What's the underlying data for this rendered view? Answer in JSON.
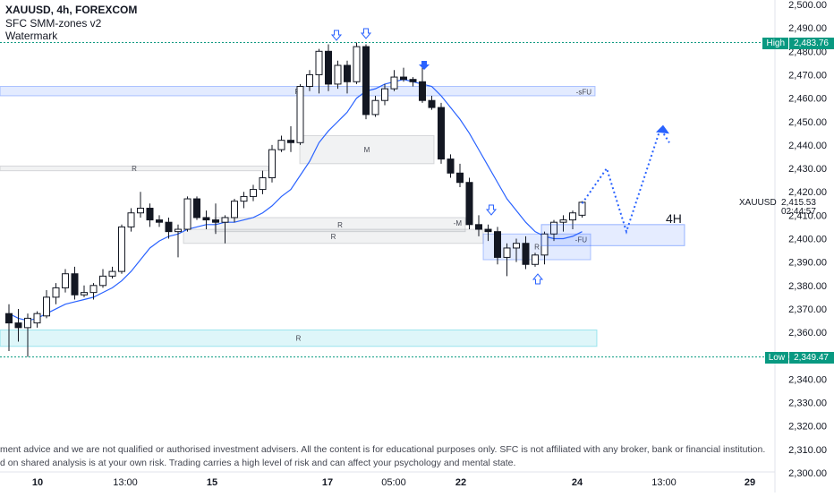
{
  "header": {
    "title": "XAUUSD, 4h, FOREXCOM",
    "indicator": "SFC SMM-zones v2",
    "watermark": "Watermark"
  },
  "timeframe_label": "4H",
  "symbol_label": "XAUUSD",
  "current_price": "2,415.53",
  "countdown": "02:44:57",
  "high_badge": {
    "label": "High",
    "value": "2,483.76"
  },
  "low_badge": {
    "label": "Low",
    "value": "2,349.47"
  },
  "disclaimer": [
    "ment advice and we are not qualified or authorised investment advisers. All the content is for educational purposes only. SFC is not affiliated with any broker, bank or financial institution.",
    "d on shared analysis is at your own risk. Trading carries a high level of risk and can affect your psychology and mental state."
  ],
  "colors": {
    "up": "#131722",
    "down": "#131722",
    "ma": "#2962ff",
    "projection": "#2962ff",
    "high_line": "#089981",
    "zone_blue": "#2962ff",
    "zone_cyan": "#00bcd4",
    "zone_gray": "#9598a1"
  },
  "chart_data": {
    "type": "candlestick",
    "title": "XAUUSD, 4h, FOREXCOM",
    "ylim": [
      2300,
      2500
    ],
    "y_ticks": [
      "2,500.00",
      "2,490.00",
      "2,480.00",
      "2,470.00",
      "2,460.00",
      "2,450.00",
      "2,440.00",
      "2,430.00",
      "2,420.00",
      "2,410.00",
      "2,400.00",
      "2,390.00",
      "2,380.00",
      "2,370.00",
      "2,360.00",
      "2,350.00",
      "2,340.00",
      "2,330.00",
      "2,320.00",
      "2,310.00",
      "2,300.00"
    ],
    "x_ticks": [
      "10",
      "13:00",
      "15",
      "17",
      "05:00",
      "22",
      "24",
      "13:00",
      "29"
    ],
    "high": 2483.76,
    "low": 2349.47,
    "last": 2415.53,
    "candles": [
      {
        "o": 2368,
        "h": 2372,
        "l": 2352,
        "c": 2364
      },
      {
        "o": 2364,
        "h": 2370,
        "l": 2356,
        "c": 2362
      },
      {
        "o": 2362,
        "h": 2368,
        "l": 2349.5,
        "c": 2366
      },
      {
        "o": 2364,
        "h": 2369,
        "l": 2362,
        "c": 2368
      },
      {
        "o": 2367,
        "h": 2378,
        "l": 2366,
        "c": 2375
      },
      {
        "o": 2375,
        "h": 2381,
        "l": 2372,
        "c": 2379
      },
      {
        "o": 2379,
        "h": 2387,
        "l": 2377,
        "c": 2385
      },
      {
        "o": 2385,
        "h": 2388,
        "l": 2374,
        "c": 2376
      },
      {
        "o": 2376,
        "h": 2380,
        "l": 2375,
        "c": 2377
      },
      {
        "o": 2377,
        "h": 2381,
        "l": 2374,
        "c": 2380
      },
      {
        "o": 2380,
        "h": 2387,
        "l": 2379,
        "c": 2384
      },
      {
        "o": 2384,
        "h": 2388,
        "l": 2383,
        "c": 2386
      },
      {
        "o": 2386,
        "h": 2406,
        "l": 2385,
        "c": 2405
      },
      {
        "o": 2405,
        "h": 2413,
        "l": 2403,
        "c": 2411
      },
      {
        "o": 2411,
        "h": 2420,
        "l": 2409,
        "c": 2413
      },
      {
        "o": 2413,
        "h": 2415,
        "l": 2405,
        "c": 2408
      },
      {
        "o": 2408,
        "h": 2410,
        "l": 2405,
        "c": 2407
      },
      {
        "o": 2407,
        "h": 2409,
        "l": 2400,
        "c": 2403
      },
      {
        "o": 2403,
        "h": 2406,
        "l": 2392,
        "c": 2404
      },
      {
        "o": 2404,
        "h": 2418,
        "l": 2403,
        "c": 2417
      },
      {
        "o": 2417,
        "h": 2418,
        "l": 2408,
        "c": 2409
      },
      {
        "o": 2409,
        "h": 2412,
        "l": 2404,
        "c": 2408
      },
      {
        "o": 2408,
        "h": 2415,
        "l": 2402,
        "c": 2407
      },
      {
        "o": 2407,
        "h": 2410,
        "l": 2398,
        "c": 2409
      },
      {
        "o": 2409,
        "h": 2417,
        "l": 2407,
        "c": 2416
      },
      {
        "o": 2416,
        "h": 2420,
        "l": 2413,
        "c": 2418
      },
      {
        "o": 2418,
        "h": 2423,
        "l": 2416,
        "c": 2421
      },
      {
        "o": 2421,
        "h": 2429,
        "l": 2419,
        "c": 2426
      },
      {
        "o": 2426,
        "h": 2440,
        "l": 2424,
        "c": 2438
      },
      {
        "o": 2438,
        "h": 2444,
        "l": 2437,
        "c": 2442
      },
      {
        "o": 2442,
        "h": 2448,
        "l": 2437,
        "c": 2441
      },
      {
        "o": 2441,
        "h": 2466,
        "l": 2440,
        "c": 2465
      },
      {
        "o": 2465,
        "h": 2472,
        "l": 2463,
        "c": 2470
      },
      {
        "o": 2470,
        "h": 2481,
        "l": 2462,
        "c": 2480
      },
      {
        "o": 2480,
        "h": 2483,
        "l": 2463,
        "c": 2466
      },
      {
        "o": 2466,
        "h": 2476,
        "l": 2464,
        "c": 2474
      },
      {
        "o": 2474,
        "h": 2476,
        "l": 2462,
        "c": 2467
      },
      {
        "o": 2467,
        "h": 2483.76,
        "l": 2466,
        "c": 2482
      },
      {
        "o": 2482,
        "h": 2483,
        "l": 2451,
        "c": 2453
      },
      {
        "o": 2453,
        "h": 2461,
        "l": 2452,
        "c": 2459
      },
      {
        "o": 2459,
        "h": 2466,
        "l": 2457,
        "c": 2464
      },
      {
        "o": 2464,
        "h": 2472,
        "l": 2463,
        "c": 2469
      },
      {
        "o": 2469,
        "h": 2473,
        "l": 2467,
        "c": 2468
      },
      {
        "o": 2468,
        "h": 2469,
        "l": 2465,
        "c": 2467
      },
      {
        "o": 2467,
        "h": 2474,
        "l": 2458,
        "c": 2459
      },
      {
        "o": 2459,
        "h": 2461,
        "l": 2455,
        "c": 2456
      },
      {
        "o": 2456,
        "h": 2458,
        "l": 2432,
        "c": 2434
      },
      {
        "o": 2434,
        "h": 2436,
        "l": 2426,
        "c": 2428
      },
      {
        "o": 2428,
        "h": 2432,
        "l": 2422,
        "c": 2424
      },
      {
        "o": 2424,
        "h": 2426,
        "l": 2404,
        "c": 2406
      },
      {
        "o": 2406,
        "h": 2410,
        "l": 2401,
        "c": 2404
      },
      {
        "o": 2404,
        "h": 2406,
        "l": 2399,
        "c": 2403
      },
      {
        "o": 2403,
        "h": 2405,
        "l": 2389,
        "c": 2392
      },
      {
        "o": 2392,
        "h": 2398,
        "l": 2384,
        "c": 2396
      },
      {
        "o": 2396,
        "h": 2400,
        "l": 2390,
        "c": 2398
      },
      {
        "o": 2398,
        "h": 2401,
        "l": 2387,
        "c": 2389
      },
      {
        "o": 2389,
        "h": 2394,
        "l": 2388,
        "c": 2393
      },
      {
        "o": 2393,
        "h": 2403,
        "l": 2389,
        "c": 2402
      },
      {
        "o": 2402,
        "h": 2408,
        "l": 2399,
        "c": 2407
      },
      {
        "o": 2407,
        "h": 2410,
        "l": 2403,
        "c": 2408
      },
      {
        "o": 2408,
        "h": 2412,
        "l": 2404,
        "c": 2411
      },
      {
        "o": 2410,
        "h": 2416,
        "l": 2409,
        "c": 2415.53
      }
    ],
    "moving_average": [
      2368,
      2366,
      2365,
      2366,
      2368,
      2370,
      2372,
      2373,
      2374,
      2375,
      2377,
      2379,
      2382,
      2386,
      2391,
      2396,
      2399,
      2401,
      2402,
      2404,
      2405,
      2406,
      2406,
      2407,
      2407,
      2408,
      2409,
      2411,
      2414,
      2418,
      2421,
      2427,
      2433,
      2441,
      2446,
      2450,
      2454,
      2460,
      2463,
      2464,
      2466,
      2467,
      2468,
      2467,
      2466,
      2465,
      2461,
      2456,
      2451,
      2445,
      2438,
      2431,
      2424,
      2417,
      2412,
      2407,
      2403,
      2401,
      2400,
      2400,
      2401,
      2403
    ],
    "projection": [
      [
        2415,
        2430,
        2403,
        2447,
        2441
      ]
    ],
    "zones": [
      {
        "y0": 2461,
        "y1": 2465,
        "label": "R",
        "tag": "-sFU",
        "color": "zone_blue"
      },
      {
        "y0": 2432,
        "y1": 2444,
        "label": "M",
        "color": "zone_gray"
      },
      {
        "y0": 2429,
        "y1": 2431,
        "label": "R",
        "color": "zone_gray"
      },
      {
        "y0": 2403,
        "y1": 2409,
        "label": "R",
        "tag": "-M",
        "color": "zone_gray"
      },
      {
        "y0": 2398,
        "y1": 2404,
        "label": "R",
        "color": "zone_gray"
      },
      {
        "y0": 2391,
        "y1": 2402,
        "label": "R",
        "tag": "-FU",
        "color": "zone_blue"
      },
      {
        "y0": 2354,
        "y1": 2361,
        "label": "R",
        "color": "zone_cyan"
      }
    ]
  }
}
